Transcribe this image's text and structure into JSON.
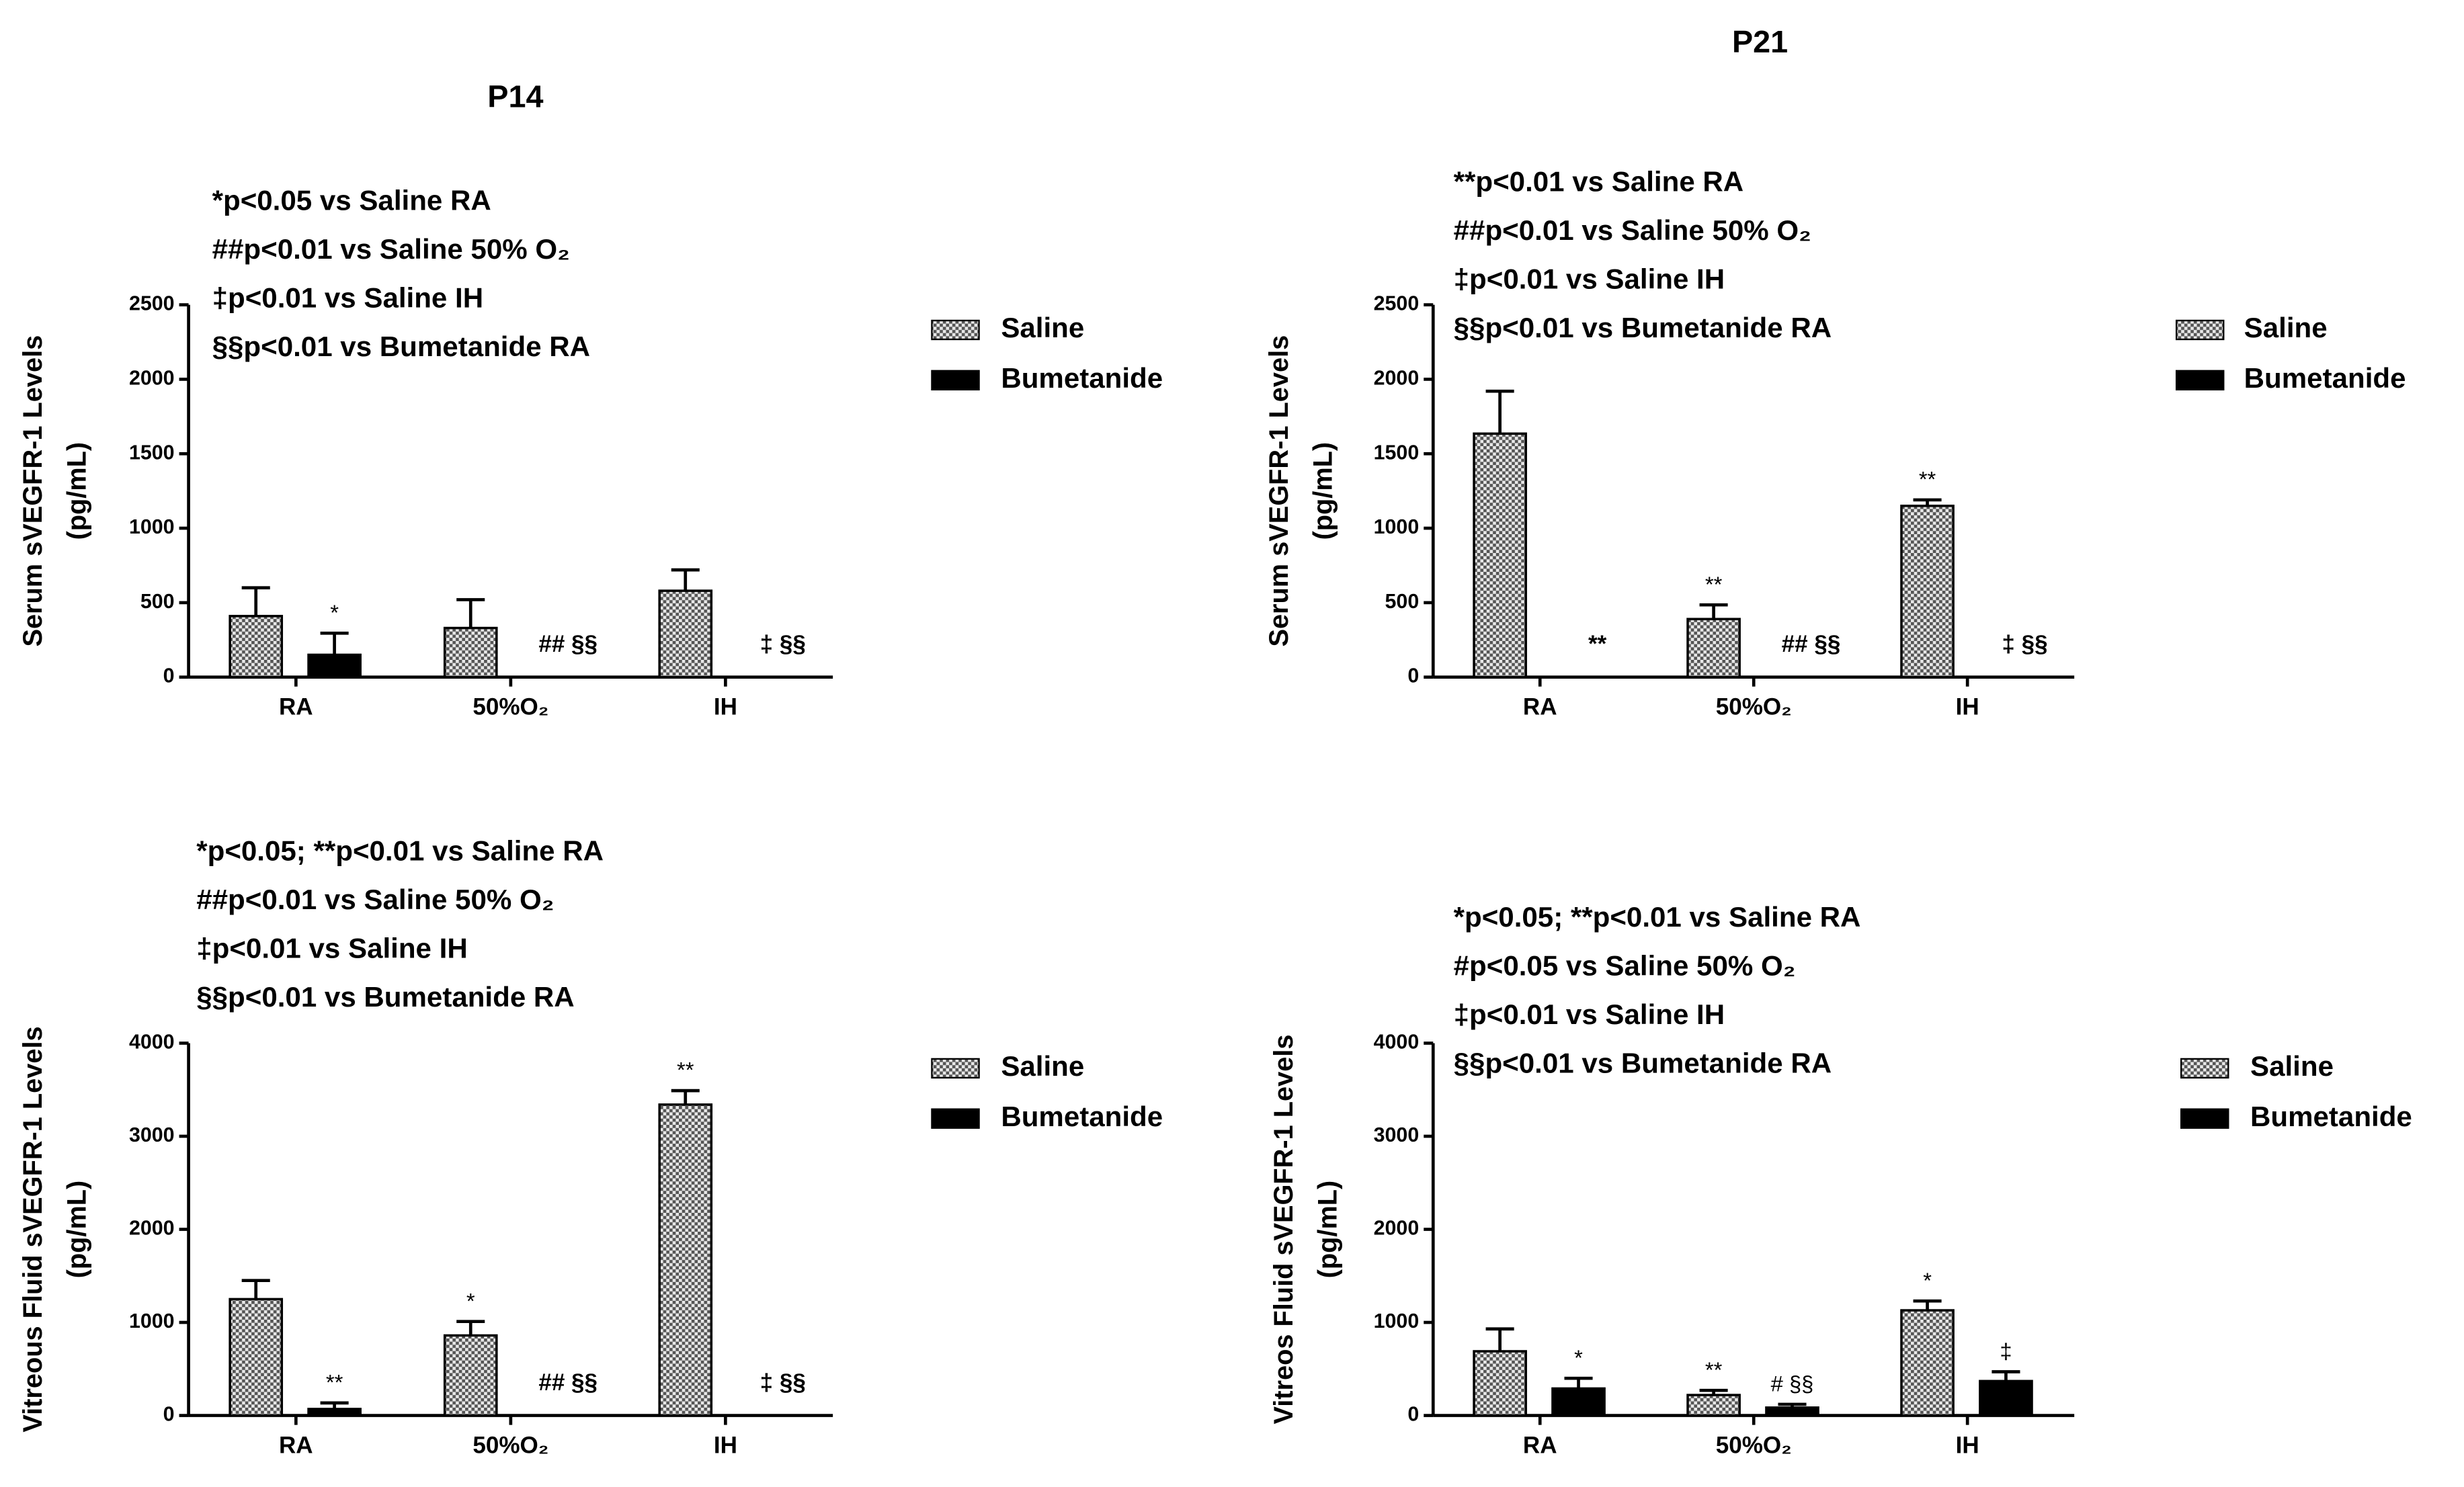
{
  "chart_data": [
    {
      "type": "bar",
      "title": "P14",
      "y_label": [
        "Serum sVEGFR-1 Levels",
        "(pg/mL)"
      ],
      "notes": [
        "*p<0.05 vs Saline RA",
        "##p<0.01 vs Saline 50%  O₂",
        "‡p<0.01 vs Saline IH",
        "§§p<0.01 vs Bumetanide RA"
      ],
      "categories": [
        "RA",
        "50%O₂",
        "IH"
      ],
      "series": [
        {
          "name": "Saline",
          "color": "#888888",
          "values": [
            410,
            330,
            580
          ],
          "errors": [
            190,
            190,
            140
          ],
          "labels": [
            null,
            null,
            null
          ]
        },
        {
          "name": "Bumetanide",
          "color": "#000000",
          "values": [
            150,
            0,
            0
          ],
          "errors": [
            145,
            0,
            0
          ],
          "labels": [
            "*",
            "## §§",
            "‡ §§"
          ]
        }
      ],
      "ylim": [
        0,
        2500
      ],
      "yticks": [
        0,
        500,
        1000,
        1500,
        2000,
        2500
      ]
    },
    {
      "type": "bar",
      "title": "P21",
      "y_label": [
        "Serum sVEGFR-1 Levels",
        "(pg/mL)"
      ],
      "notes": [
        "**p<0.01 vs Saline RA",
        "##p<0.01 vs Saline 50%  O₂",
        "‡p<0.01 vs Saline IH",
        "§§p<0.01 vs Bumetanide RA"
      ],
      "categories": [
        "RA",
        "50%O₂",
        "IH"
      ],
      "series": [
        {
          "name": "Saline",
          "color": "#888888",
          "values": [
            1635,
            390,
            1150
          ],
          "errors": [
            285,
            95,
            40
          ],
          "labels": [
            null,
            "**",
            "**"
          ]
        },
        {
          "name": "Bumetanide",
          "color": "#000000",
          "values": [
            0,
            0,
            0
          ],
          "errors": [
            0,
            0,
            0
          ],
          "labels": [
            "**",
            "## §§",
            "‡ §§"
          ]
        }
      ],
      "ylim": [
        0,
        2500
      ],
      "yticks": [
        0,
        500,
        1000,
        1500,
        2000,
        2500
      ]
    },
    {
      "type": "bar",
      "y_label": [
        "Vitreous Fluid sVEGFR-1 Levels",
        "(pg/mL)"
      ],
      "notes": [
        "*p<0.05; **p<0.01 vs Saline RA",
        "##p<0.01 vs Saline 50%  O₂",
        "‡p<0.01 vs Saline IH",
        "§§p<0.01 vs Bumetanide RA"
      ],
      "categories": [
        "RA",
        "50%O₂",
        "IH"
      ],
      "series": [
        {
          "name": "Saline",
          "color": "#888888",
          "values": [
            1250,
            860,
            3340
          ],
          "errors": [
            200,
            150,
            150
          ],
          "labels": [
            null,
            "*",
            "**"
          ]
        },
        {
          "name": "Bumetanide",
          "color": "#000000",
          "values": [
            70,
            0,
            0
          ],
          "errors": [
            65,
            0,
            0
          ],
          "labels": [
            "**",
            "## §§",
            "‡ §§"
          ]
        }
      ],
      "ylim": [
        0,
        4000
      ],
      "yticks": [
        0,
        1000,
        2000,
        3000,
        4000
      ]
    },
    {
      "type": "bar",
      "y_label": [
        "Vitreos Fluid sVEGFR-1 Levels",
        "(pg/mL)"
      ],
      "notes": [
        "*p<0.05; **p<0.01 vs Saline RA",
        "#p<0.05 vs Saline 50%  O₂",
        "‡p<0.01 vs Saline IH",
        "§§p<0.01 vs Bumetanide RA"
      ],
      "categories": [
        "RA",
        "50%O₂",
        "IH"
      ],
      "series": [
        {
          "name": "Saline",
          "color": "#888888",
          "values": [
            690,
            220,
            1130
          ],
          "errors": [
            240,
            50,
            100
          ],
          "labels": [
            null,
            "**",
            "*"
          ]
        },
        {
          "name": "Bumetanide",
          "color": "#000000",
          "values": [
            290,
            85,
            370
          ],
          "errors": [
            110,
            35,
            100
          ],
          "labels": [
            "*",
            "# §§",
            "‡"
          ]
        }
      ],
      "ylim": [
        0,
        4000
      ],
      "yticks": [
        0,
        1000,
        2000,
        3000,
        4000
      ]
    }
  ]
}
